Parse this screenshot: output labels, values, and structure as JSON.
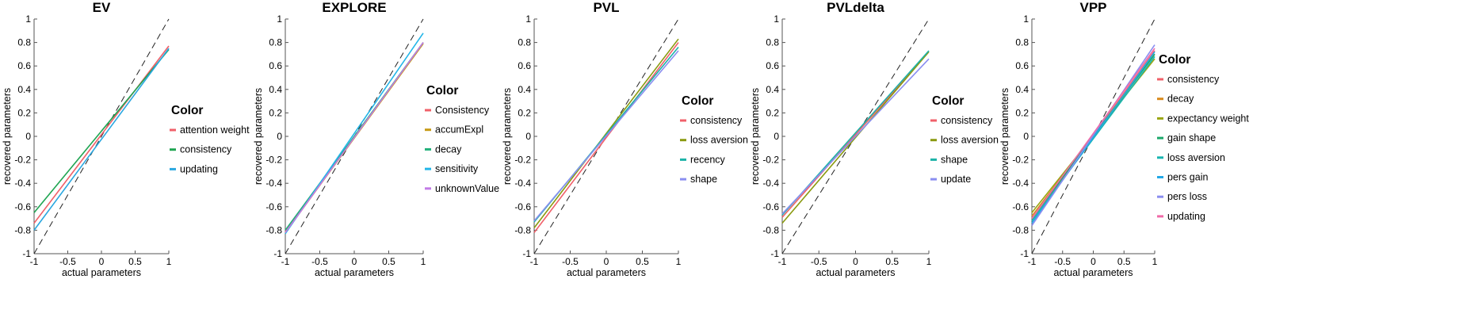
{
  "chart_data": [
    {
      "type": "line",
      "title": "EV",
      "xlabel": "actual parameters",
      "ylabel": "recovered parameters",
      "xlim": [
        -1,
        1
      ],
      "ylim": [
        -1,
        1
      ],
      "xticks": [
        "-1",
        "-0.5",
        "0",
        "0.5",
        "1"
      ],
      "yticks": [
        "-1",
        "-0.8",
        "-0.6",
        "-0.4",
        "-0.2",
        "0",
        "0.2",
        "0.4",
        "0.6",
        "0.8",
        "1"
      ],
      "legend_title": "Color",
      "legend_placement": "right",
      "reference_line": "identity (dashed)",
      "series": [
        {
          "name": "attention weight",
          "color": "#f0606a",
          "x": [
            -1,
            1
          ],
          "y": [
            -0.74,
            0.77
          ]
        },
        {
          "name": "consistency",
          "color": "#1fa552",
          "x": [
            -1,
            1
          ],
          "y": [
            -0.65,
            0.74
          ]
        },
        {
          "name": "updating",
          "color": "#2aa7e0",
          "x": [
            -1,
            1
          ],
          "y": [
            -0.8,
            0.75
          ]
        }
      ]
    },
    {
      "type": "line",
      "title": "EXPLORE",
      "xlabel": "actual parameters",
      "ylabel": "recovered parameters",
      "xlim": [
        -1,
        1
      ],
      "ylim": [
        -1,
        1
      ],
      "xticks": [
        "-1",
        "-0.5",
        "0",
        "0.5",
        "1"
      ],
      "yticks": [
        "-1",
        "-0.8",
        "-0.6",
        "-0.4",
        "-0.2",
        "0",
        "0.2",
        "0.4",
        "0.6",
        "0.8",
        "1"
      ],
      "legend_title": "Color",
      "legend_placement": "right",
      "reference_line": "identity (dashed)",
      "series": [
        {
          "name": "Consistency",
          "color": "#f0606a",
          "x": [
            -1,
            1
          ],
          "y": [
            -0.81,
            0.8
          ]
        },
        {
          "name": "accumExpl",
          "color": "#c79a16",
          "x": [
            -1,
            1
          ],
          "y": [
            -0.82,
            0.79
          ]
        },
        {
          "name": "decay",
          "color": "#22b07a",
          "x": [
            -1,
            1
          ],
          "y": [
            -0.8,
            0.8
          ]
        },
        {
          "name": "sensitivity",
          "color": "#22b5e8",
          "x": [
            -1,
            1
          ],
          "y": [
            -0.83,
            0.88
          ]
        },
        {
          "name": "unknownValue",
          "color": "#c27be6",
          "x": [
            -1,
            1
          ],
          "y": [
            -0.82,
            0.8
          ]
        }
      ]
    },
    {
      "type": "line",
      "title": "PVL",
      "xlabel": "actual parameters",
      "ylabel": "recovered parameters",
      "xlim": [
        -1,
        1
      ],
      "ylim": [
        -1,
        1
      ],
      "xticks": [
        "-1",
        "-0.5",
        "0",
        "0.5",
        "1"
      ],
      "yticks": [
        "-1",
        "-0.8",
        "-0.6",
        "-0.4",
        "-0.2",
        "0",
        "0.2",
        "0.4",
        "0.6",
        "0.8",
        "1"
      ],
      "legend_title": "Color",
      "legend_placement": "right",
      "reference_line": "identity (dashed)",
      "series": [
        {
          "name": "consistency",
          "color": "#f0606a",
          "x": [
            -1,
            1
          ],
          "y": [
            -0.82,
            0.8
          ]
        },
        {
          "name": "loss aversion",
          "color": "#8a9a10",
          "x": [
            -1,
            1
          ],
          "y": [
            -0.78,
            0.83
          ]
        },
        {
          "name": "recency",
          "color": "#1cb3a8",
          "x": [
            -1,
            1
          ],
          "y": [
            -0.73,
            0.76
          ]
        },
        {
          "name": "shape",
          "color": "#8a8ef0",
          "x": [
            -1,
            1
          ],
          "y": [
            -0.72,
            0.73
          ]
        }
      ]
    },
    {
      "type": "line",
      "title": "PVLdelta",
      "xlabel": "actual parameters",
      "ylabel": "recovered parameters",
      "xlim": [
        -1,
        1
      ],
      "ylim": [
        -1,
        1
      ],
      "xticks": [
        "-1",
        "-0.5",
        "0",
        "0.5",
        "1"
      ],
      "yticks": [
        "-1",
        "-0.8",
        "-0.6",
        "-0.4",
        "-0.2",
        "0",
        "0.2",
        "0.4",
        "0.6",
        "0.8",
        "1"
      ],
      "legend_title": "Color",
      "legend_placement": "right",
      "reference_line": "identity (dashed)",
      "series": [
        {
          "name": "consistency",
          "color": "#f0606a",
          "x": [
            -1,
            1
          ],
          "y": [
            -0.69,
            0.72
          ]
        },
        {
          "name": "loss aversion",
          "color": "#8a9a10",
          "x": [
            -1,
            1
          ],
          "y": [
            -0.74,
            0.72
          ]
        },
        {
          "name": "shape",
          "color": "#1cb3a8",
          "x": [
            -1,
            1
          ],
          "y": [
            -0.67,
            0.73
          ]
        },
        {
          "name": "update",
          "color": "#8a8ef0",
          "x": [
            -1,
            1
          ],
          "y": [
            -0.66,
            0.66
          ]
        }
      ]
    },
    {
      "type": "line",
      "title": "VPP",
      "xlabel": "actual parameters",
      "ylabel": "recovered parameters",
      "xlim": [
        -1,
        1
      ],
      "ylim": [
        -1,
        1
      ],
      "xticks": [
        "-1",
        "-0.5",
        "0",
        "0.5",
        "1"
      ],
      "yticks": [
        "-1",
        "-0.8",
        "-0.6",
        "-0.4",
        "-0.2",
        "0",
        "0.2",
        "0.4",
        "0.6",
        "0.8",
        "1"
      ],
      "legend_title": "Color",
      "legend_placement": "right",
      "reference_line": "identity (dashed)",
      "series": [
        {
          "name": "consistency",
          "color": "#f0606a",
          "x": [
            -1,
            1
          ],
          "y": [
            -0.72,
            0.73
          ]
        },
        {
          "name": "decay",
          "color": "#d98a1c",
          "x": [
            -1,
            1
          ],
          "y": [
            -0.68,
            0.7
          ]
        },
        {
          "name": "expectancy weight",
          "color": "#9aa612",
          "x": [
            -1,
            1
          ],
          "y": [
            -0.65,
            0.66
          ]
        },
        {
          "name": "gain shape",
          "color": "#1ca86a",
          "x": [
            -1,
            1
          ],
          "y": [
            -0.7,
            0.7
          ]
        },
        {
          "name": "loss aversion",
          "color": "#18b5b0",
          "x": [
            -1,
            1
          ],
          "y": [
            -0.72,
            0.68
          ]
        },
        {
          "name": "pers gain",
          "color": "#22a8e6",
          "x": [
            -1,
            1
          ],
          "y": [
            -0.74,
            0.72
          ]
        },
        {
          "name": "pers loss",
          "color": "#8a8ef0",
          "x": [
            -1,
            1
          ],
          "y": [
            -0.76,
            0.78
          ]
        },
        {
          "name": "updating",
          "color": "#f06aa8",
          "x": [
            -1,
            1
          ],
          "y": [
            -0.7,
            0.75
          ]
        }
      ]
    }
  ]
}
